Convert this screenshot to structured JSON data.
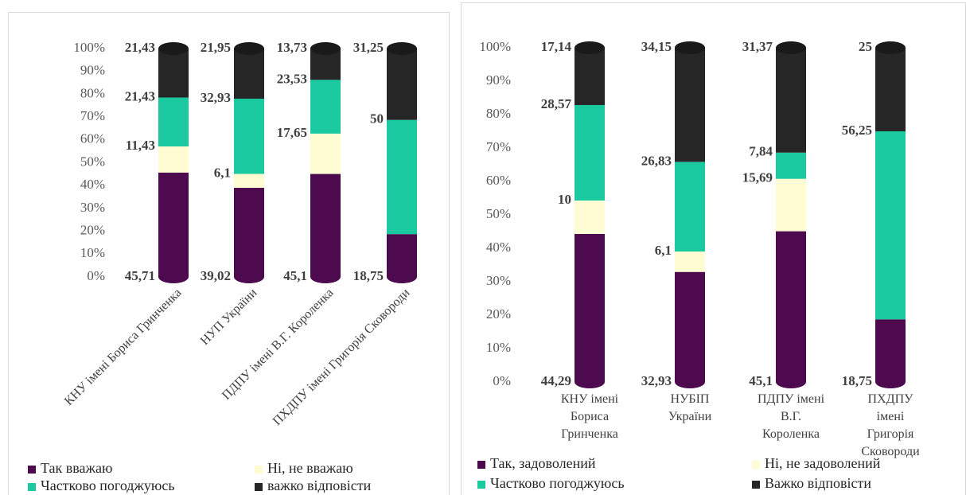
{
  "chart_data": [
    {
      "type": "stacked-bar",
      "categories": [
        "КНУ імені Бориса Гринченка",
        "НУП України",
        "ПДПУ імені В.Г. Короленка",
        "ПХДПУ імені Григорія Сковороди"
      ],
      "series": [
        {
          "name": "Так вважаю",
          "color": "#4d0a4f",
          "values": [
            45.71,
            39.02,
            45.1,
            18.75
          ],
          "value_labels": [
            "45,71",
            "39,02",
            "45,1",
            "18,75"
          ]
        },
        {
          "name": "Ні, не вважаю",
          "color": "#fffbd2",
          "values": [
            11.43,
            6.1,
            17.65,
            null
          ],
          "value_labels": [
            "11,43",
            "6,1",
            "17,65",
            null
          ]
        },
        {
          "name": "Частково погоджуюсь",
          "color": "#1ac9a0",
          "values": [
            21.43,
            32.93,
            23.53,
            50
          ],
          "value_labels": [
            "21,43",
            "32,93",
            "23,53",
            "50"
          ]
        },
        {
          "name": "важко відповісти",
          "color": "#262626",
          "values": [
            21.43,
            21.95,
            13.73,
            31.25
          ],
          "value_labels": [
            "21,43",
            "21,95",
            "13,73",
            "31,25"
          ]
        }
      ],
      "ylim": [
        0,
        100
      ],
      "yticks": [
        {
          "value": 0,
          "label": "0%"
        },
        {
          "value": 10,
          "label": "10%"
        },
        {
          "value": 20,
          "label": "20%"
        },
        {
          "value": 30,
          "label": "30%"
        },
        {
          "value": 40,
          "label": "40%"
        },
        {
          "value": 50,
          "label": "50%"
        },
        {
          "value": 60,
          "label": "60%"
        },
        {
          "value": 70,
          "label": "70%"
        },
        {
          "value": 80,
          "label": "80%"
        },
        {
          "value": 90,
          "label": "90%"
        },
        {
          "value": 100,
          "label": "100%"
        }
      ]
    },
    {
      "type": "stacked-bar",
      "categories": [
        "КНУ імені Бориса Гринченка",
        "НУБІП України",
        "ПДПУ імені В.Г. Короленка",
        "ПХДПУ імені Григорія Сковороди"
      ],
      "series": [
        {
          "name": "Так, задоволений",
          "color": "#4d0a4f",
          "values": [
            44.29,
            32.93,
            45.1,
            18.75
          ],
          "value_labels": [
            "44,29",
            "32,93",
            "45,1",
            "18,75"
          ]
        },
        {
          "name": "Ні, не задоволений",
          "color": "#fffbd2",
          "values": [
            10,
            6.1,
            15.69,
            null
          ],
          "value_labels": [
            "10",
            "6,1",
            "15,69",
            null
          ]
        },
        {
          "name": "Частково погоджуюсь",
          "color": "#1ac9a0",
          "values": [
            28.57,
            26.83,
            7.84,
            56.25
          ],
          "value_labels": [
            "28,57",
            "26,83",
            "7,84",
            "56,25"
          ]
        },
        {
          "name": "Важко відповісти",
          "color": "#262626",
          "values": [
            17.14,
            34.15,
            31.37,
            25
          ],
          "value_labels": [
            "17,14",
            "34,15",
            "31,37",
            "25"
          ]
        }
      ],
      "ylim": [
        0,
        100
      ],
      "yticks": [
        {
          "value": 0,
          "label": "0%"
        },
        {
          "value": 10,
          "label": "10%"
        },
        {
          "value": 20,
          "label": "20%"
        },
        {
          "value": 30,
          "label": "30%"
        },
        {
          "value": 40,
          "label": "40%"
        },
        {
          "value": 50,
          "label": "50%"
        },
        {
          "value": 60,
          "label": "60%"
        },
        {
          "value": 70,
          "label": "70%"
        },
        {
          "value": 80,
          "label": "80%"
        },
        {
          "value": 90,
          "label": "90%"
        },
        {
          "value": 100,
          "label": "100%"
        }
      ]
    }
  ]
}
